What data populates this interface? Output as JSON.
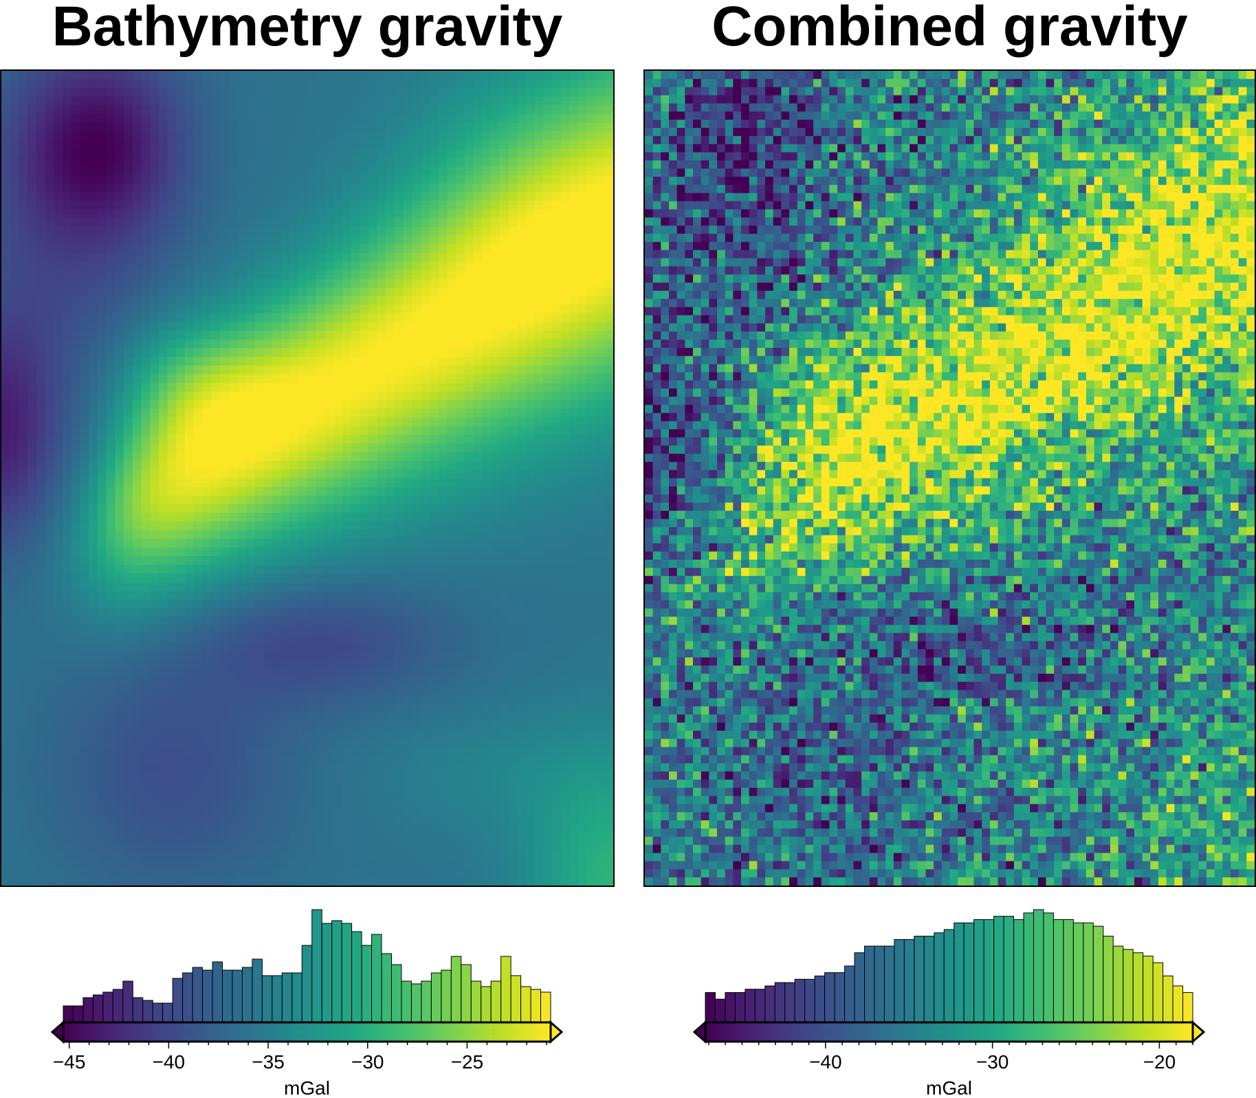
{
  "chart_data": [
    {
      "type": "heatmap",
      "title": "Bathymetry gravity",
      "colormap": "viridis",
      "value_range": [
        -45.3,
        -20.8
      ],
      "grid": false,
      "colorbar": {
        "label": "mGal",
        "ticks": [
          -45,
          -40,
          -35,
          -30,
          -25
        ],
        "tick_labels": [
          "−45",
          "−40",
          "−35",
          "−30",
          "−25"
        ],
        "extend": "both"
      },
      "histogram": {
        "bins": 49,
        "range": [
          -45.3,
          -20.8
        ],
        "counts": [
          6,
          6,
          9,
          10,
          11,
          12,
          15,
          9,
          8,
          7,
          7,
          16,
          18,
          20,
          19,
          22,
          19,
          19,
          20,
          23,
          17,
          17,
          18,
          18,
          28,
          41,
          36,
          37,
          36,
          33,
          28,
          32,
          25,
          21,
          15,
          14,
          15,
          18,
          19,
          24,
          21,
          15,
          13,
          15,
          24,
          17,
          13,
          12,
          11
        ]
      }
    },
    {
      "type": "heatmap",
      "title": "Combined gravity",
      "colormap": "viridis",
      "value_range": [
        -47.2,
        -18.0
      ],
      "grid": false,
      "colorbar": {
        "label": "mGal",
        "ticks": [
          -40,
          -30,
          -20
        ],
        "tick_labels": [
          "−40",
          "−30",
          "−20"
        ],
        "extend": "both"
      },
      "histogram": {
        "bins": 49,
        "range": [
          -47.2,
          -18.0
        ],
        "counts": [
          9,
          7,
          9,
          9,
          10,
          10,
          11,
          12,
          12,
          13,
          13,
          14,
          15,
          15,
          17,
          21,
          23,
          23,
          23,
          25,
          25,
          26,
          26,
          27,
          28,
          30,
          30,
          31,
          31,
          32,
          32,
          31,
          33,
          34,
          33,
          31,
          31,
          30,
          30,
          29,
          26,
          23,
          22,
          21,
          20,
          18,
          14,
          11,
          9
        ]
      }
    }
  ]
}
